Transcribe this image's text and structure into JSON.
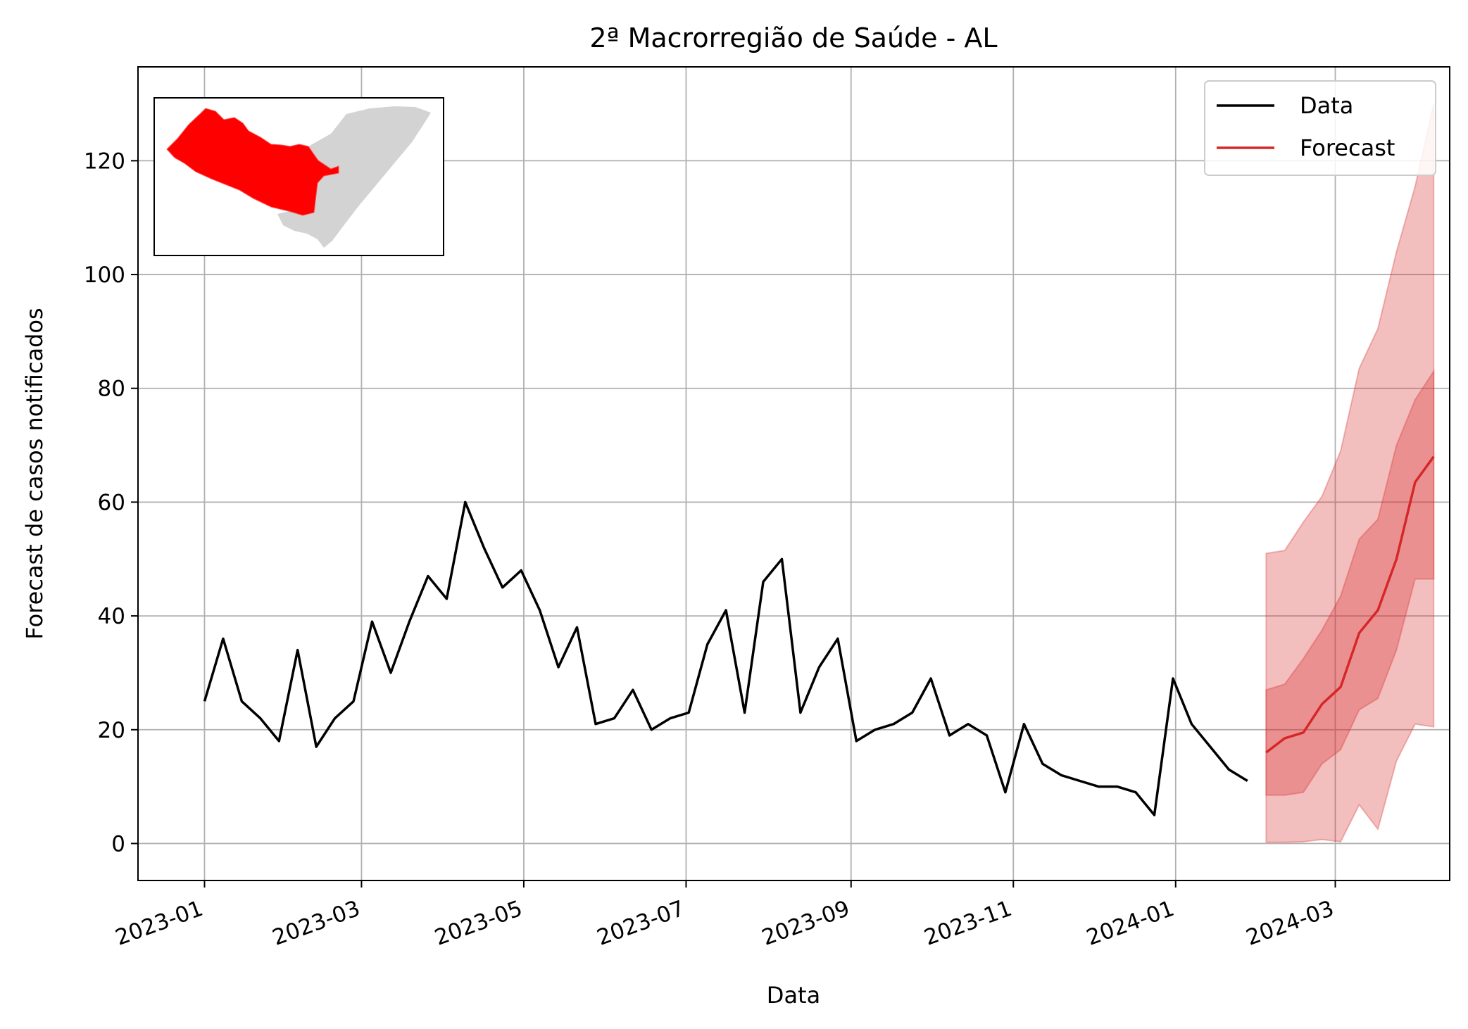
{
  "chart_data": {
    "type": "line",
    "title": "2ª Macrorregião de Saúde - AL",
    "xlabel": "Data",
    "ylabel": "Forecast de casos notificados",
    "xlim": [
      "2022-12-07",
      "2024-04-13"
    ],
    "ylim": [
      -6.5,
      136.5
    ],
    "x_ticks": [
      "2023-01",
      "2023-03",
      "2023-05",
      "2023-07",
      "2023-09",
      "2023-11",
      "2024-01",
      "2024-03"
    ],
    "x_tick_dates": [
      "2023-01-01",
      "2023-03-01",
      "2023-05-01",
      "2023-07-01",
      "2023-09-01",
      "2023-11-01",
      "2024-01-01",
      "2024-03-01"
    ],
    "y_ticks": [
      0,
      20,
      40,
      60,
      80,
      100,
      120
    ],
    "grid": true,
    "legend_position": "top-right",
    "colors": {
      "data": "#000000",
      "forecast": "#d62728",
      "band": "#d62728",
      "grid": "#b0b0b0",
      "inset_region": "#ff0000",
      "inset_rest": "#d3d3d3"
    },
    "series": [
      {
        "name": "Data",
        "x": [
          "2023-01-01",
          "2023-01-08",
          "2023-01-15",
          "2023-01-22",
          "2023-01-29",
          "2023-02-05",
          "2023-02-12",
          "2023-02-19",
          "2023-02-26",
          "2023-03-05",
          "2023-03-12",
          "2023-03-19",
          "2023-03-26",
          "2023-04-02",
          "2023-04-09",
          "2023-04-16",
          "2023-04-23",
          "2023-04-30",
          "2023-05-07",
          "2023-05-14",
          "2023-05-21",
          "2023-05-28",
          "2023-06-04",
          "2023-06-11",
          "2023-06-18",
          "2023-06-25",
          "2023-07-02",
          "2023-07-09",
          "2023-07-16",
          "2023-07-23",
          "2023-07-30",
          "2023-08-06",
          "2023-08-13",
          "2023-08-20",
          "2023-08-27",
          "2023-09-03",
          "2023-09-10",
          "2023-09-17",
          "2023-09-24",
          "2023-10-01",
          "2023-10-08",
          "2023-10-15",
          "2023-10-22",
          "2023-10-29",
          "2023-11-05",
          "2023-11-12",
          "2023-11-19",
          "2023-11-26",
          "2023-12-03",
          "2023-12-10",
          "2023-12-17",
          "2023-12-24",
          "2023-12-31",
          "2024-01-07",
          "2024-01-14",
          "2024-01-21",
          "2024-01-28"
        ],
        "values": [
          25,
          36,
          25,
          22,
          18,
          34,
          17,
          22,
          25,
          39,
          30,
          39,
          47,
          43,
          60,
          52,
          45,
          48,
          41,
          31,
          38,
          21,
          22,
          27,
          20,
          22,
          23,
          35,
          41,
          23,
          46,
          50,
          23,
          31,
          36,
          18,
          20,
          21,
          23,
          29,
          19,
          21,
          19,
          9,
          21,
          14,
          12,
          11,
          10,
          10,
          9,
          5,
          29,
          21,
          17,
          13,
          11
        ]
      },
      {
        "name": "Forecast",
        "x": [
          "2024-02-04",
          "2024-02-11",
          "2024-02-18",
          "2024-02-25",
          "2024-03-03",
          "2024-03-10",
          "2024-03-17",
          "2024-03-24",
          "2024-03-31",
          "2024-04-07"
        ],
        "values": [
          16,
          18.5,
          19.5,
          24.5,
          27.5,
          37,
          41,
          50,
          63.5,
          68
        ],
        "band_inner_lower": [
          8.5,
          8.5,
          9,
          14,
          16.5,
          23.5,
          25.5,
          34,
          46.5,
          46.5
        ],
        "band_inner_upper": [
          27,
          28,
          32.5,
          37.5,
          43.5,
          53.5,
          57,
          70,
          78,
          83
        ],
        "band_outer_lower": [
          0.2,
          0.2,
          0.3,
          0.7,
          0.3,
          6.8,
          2.5,
          14.5,
          21,
          20.5
        ],
        "band_outer_upper": [
          51,
          51.5,
          56.5,
          61,
          69,
          83.5,
          90.5,
          104,
          115.5,
          130
        ]
      }
    ]
  }
}
